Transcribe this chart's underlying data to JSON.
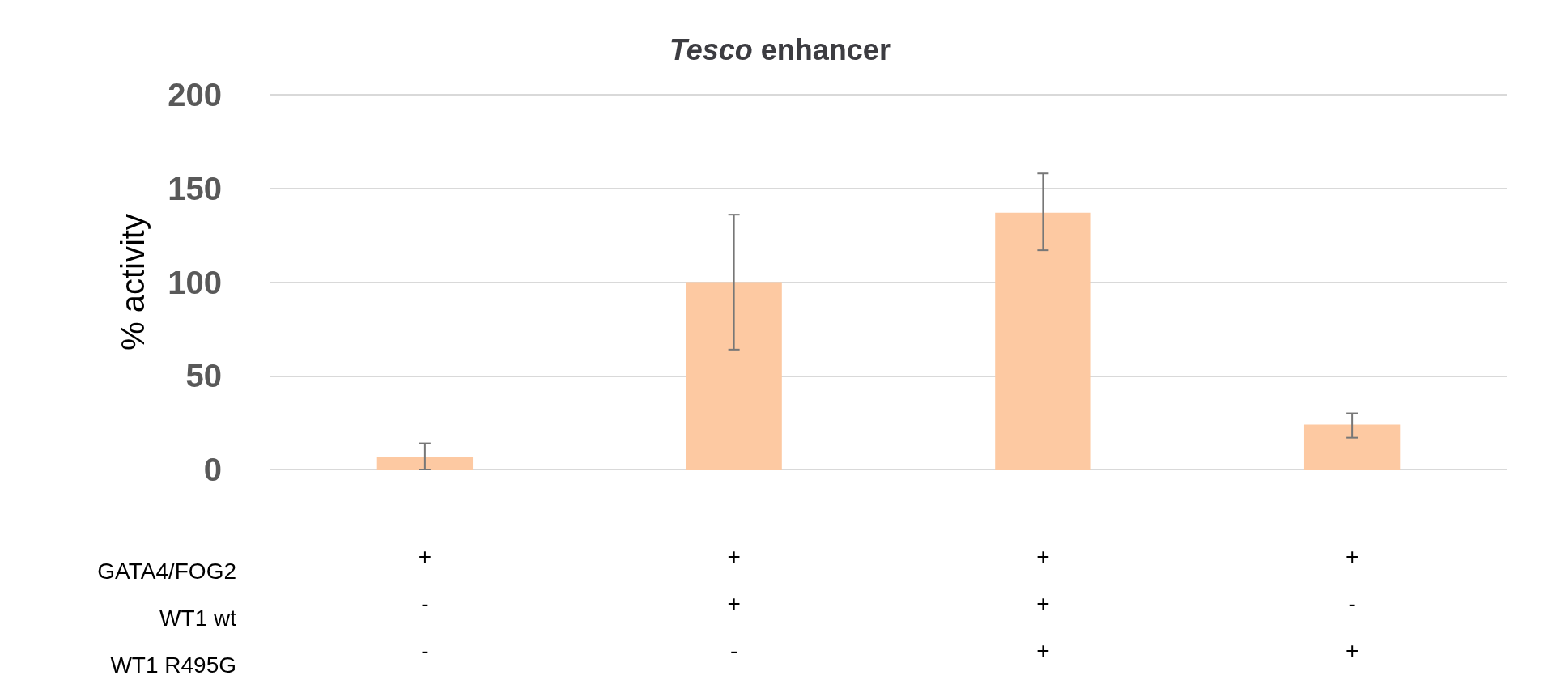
{
  "chart_data": {
    "type": "bar",
    "title": "Tesco enhancer",
    "ylabel": "% activity",
    "categories": [
      "+\n-\n-",
      "+\n+\n-",
      "+\n+\n+",
      "+\n-\n+"
    ],
    "values": [
      6.5,
      100,
      137,
      24
    ],
    "errors": [
      [
        0,
        14
      ],
      [
        64,
        136
      ],
      [
        117,
        158
      ],
      [
        17,
        30
      ]
    ],
    "color": "#fdc9a2",
    "ylim": [
      0,
      200
    ],
    "yticks": [
      0,
      50,
      100,
      150,
      200
    ],
    "grid": "y",
    "annotations": [
      "GATA4/FOG2",
      "WT1 wt",
      "WT1 R495G"
    ]
  }
}
